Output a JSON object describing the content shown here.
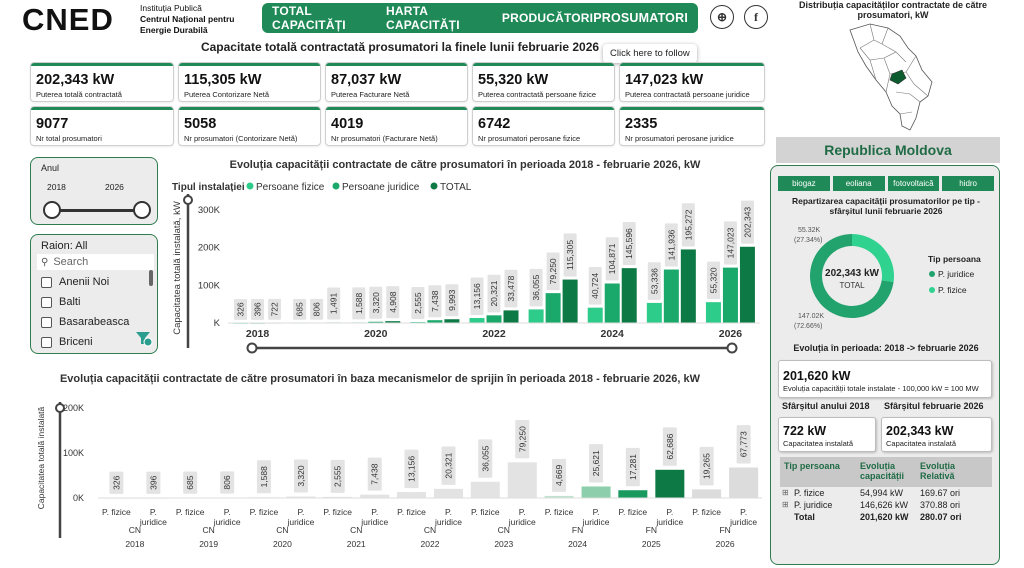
{
  "header": {
    "logo": "CNED",
    "logo_sub_1": "Instituția Publică",
    "logo_sub_2": "Centrul Național pentru",
    "logo_sub_3": "Energie Durabilă",
    "nav": [
      "TOTAL CAPACITĂȚI",
      "HARTA CAPACITĂȚI",
      "PRODUCĂTORI",
      "PROSUMATORI"
    ],
    "active_nav": "PROSUMATORI",
    "tooltip": "Click here to follow"
  },
  "page_title": "Capacitate totală contractată prosumatori la finele lunii februarie 2026",
  "kpis_row1": [
    {
      "value": "202,343 kW",
      "label": "Puterea totală contractată"
    },
    {
      "value": "115,305 kW",
      "label": "Puterea Contorizare Netă"
    },
    {
      "value": "87,037 kW",
      "label": "Puterea Facturare Netă"
    },
    {
      "value": "55,320 kW",
      "label": "Puterea contractată persoane fizice"
    },
    {
      "value": "147,023 kW",
      "label": "Puterea contractată persoane juridice"
    }
  ],
  "kpis_row2": [
    {
      "value": "9077",
      "label": "Nr total prosumatori"
    },
    {
      "value": "5058",
      "label": "Nr prosumatori (Contorizare Netă)"
    },
    {
      "value": "4019",
      "label": "Nr prosumatori (Facturare Netă)"
    },
    {
      "value": "6742",
      "label": "Nr prosumatori perosane fizice"
    },
    {
      "value": "2335",
      "label": "Nr prosumatori perosane juridice"
    }
  ],
  "year_slicer": {
    "title": "Anul",
    "from": "2018",
    "to": "2026"
  },
  "raion_slicer": {
    "title": "Raion: All",
    "search_placeholder": "Search",
    "items": [
      "Anenii Noi",
      "Balti",
      "Basarabeasca",
      "Briceni"
    ]
  },
  "map": {
    "title": "Distribuția capacităților contractate de către prosumatori, kW"
  },
  "right": {
    "country": "Republica Moldova",
    "tabs": [
      "biogaz",
      "eoliana",
      "fotovoltaică",
      "hidro"
    ],
    "donut_title": "Repartizarea capacității prosumatorilor pe tip - sfârșitul lunii februarie 2026",
    "donut_center_value": "202,343 kW",
    "donut_center_label": "TOTAL",
    "donut_label_pf": "55.32K",
    "donut_label_pf_pct": "(27.34%)",
    "donut_label_pj": "147.02K",
    "donut_label_pj_pct": "(72.66%)",
    "legend_title": "Tip persoana",
    "legend_items": [
      "P. juridice",
      "P. fizice"
    ],
    "evolution_title": "Evoluția în perioada: 2018 -> februarie 2026",
    "evolution_value": "201,620 kW",
    "evolution_label": "Evoluția capacității totale instalate - 100,000 kW = 100 MW",
    "end2018_title": "Sfârșitul anului 2018",
    "endfeb_title": "Sfârșitul februarie 2026",
    "end2018_value": "722 kW",
    "end2018_label": "Capacitatea instalată",
    "endfeb_value": "202,343 kW",
    "endfeb_label": "Capacitatea instalată",
    "table_headers": [
      "Tip persoana",
      "Evoluția capacității",
      "Evoluția Relativă"
    ],
    "table_rows": [
      {
        "type": "P. fizice",
        "abs": "54,994 kW",
        "rel": "169.67 ori"
      },
      {
        "type": "P. juridice",
        "abs": "146,626 kW",
        "rel": "370.88 ori"
      },
      {
        "type": "Total",
        "abs": "201,620 kW",
        "rel": "280.07 ori"
      }
    ]
  },
  "colors": {
    "pf": "#2ecc8a",
    "pj": "#1aa96a",
    "total": "#0d7a45",
    "accent": "#1f8a57"
  },
  "chart_data": [
    {
      "type": "bar",
      "title": "Evoluția capacității contractate de către prosumatori în perioada 2018 - februarie 2026, kW",
      "legend_title": "Tipul instalației",
      "ylabel": "Capacitatea totală instalată, kW",
      "yticks": [
        "300K",
        "200K",
        "100K",
        "K"
      ],
      "ylim": [
        0,
        300000
      ],
      "categories": [
        "2018",
        "2019",
        "2020",
        "2021",
        "2022",
        "2023",
        "2024",
        "2025",
        "2026"
      ],
      "xtick_labels": [
        "2018",
        "2020",
        "2022",
        "2024",
        "2026"
      ],
      "series": [
        {
          "name": "Persoane fizice",
          "values": [
            326,
            685,
            1588,
            2555,
            13156,
            36055,
            40724,
            53336,
            55320
          ],
          "labels": [
            "326",
            "685",
            "1,588",
            "2,555",
            "13,156",
            "36,055",
            "40,724",
            "53,336",
            "55,320"
          ]
        },
        {
          "name": "Persoane juridice",
          "values": [
            396,
            806,
            3320,
            7438,
            20321,
            79250,
            104871,
            141936,
            147023
          ],
          "labels": [
            "396",
            "806",
            "3,320",
            "7,438",
            "20,321",
            "79,250",
            "104,871",
            "141,936",
            "147,023"
          ]
        },
        {
          "name": "TOTAL",
          "values": [
            722,
            1491,
            4908,
            9993,
            33478,
            115305,
            145596,
            195272,
            202343
          ],
          "labels": [
            "722",
            "1,491",
            "4,908",
            "9,993",
            "33,478",
            "115,305",
            "145,596",
            "195,272",
            "202,343"
          ]
        }
      ]
    },
    {
      "type": "bar",
      "title": "Evoluția capacității contractate de către prosumatori în baza mecanismelor de sprijin în perioada 2018 - februarie 2026, kW",
      "ylabel": "Capacitatea totală instalată",
      "yticks": [
        "200K",
        "100K",
        "0K"
      ],
      "ylim": [
        0,
        200000
      ],
      "groups": [
        {
          "year": "2018",
          "mech": "CN",
          "pf": 326,
          "pj": 396,
          "pf_label": "326",
          "pj_label": "396"
        },
        {
          "year": "2019",
          "mech": "CN",
          "pf": 685,
          "pj": 806,
          "pf_label": "685",
          "pj_label": "806"
        },
        {
          "year": "2020",
          "mech": "CN",
          "pf": 1588,
          "pj": 3320,
          "pf_label": "1,588",
          "pj_label": "3,320"
        },
        {
          "year": "2021",
          "mech": "CN",
          "pf": 2555,
          "pj": 7438,
          "pf_label": "2,555",
          "pj_label": "7,438"
        },
        {
          "year": "2022",
          "mech": "CN",
          "pf": 13156,
          "pj": 20321,
          "pf_label": "13,156",
          "pj_label": "20,321"
        },
        {
          "year": "2023",
          "mech": "CN",
          "pf": 36055,
          "pj": 79250,
          "pf_label": "36,055",
          "pj_label": "79,250"
        },
        {
          "year": "2024",
          "mech": "FN",
          "pf": 4669,
          "pj": 25621,
          "pf_label": "4,669",
          "pj_label": "25,621"
        },
        {
          "year": "2025",
          "mech": "FN",
          "pf": 17281,
          "pj": 62686,
          "pf_label": "17,281",
          "pj_label": "62,686"
        },
        {
          "year": "2026",
          "mech": "FN",
          "pf": 19265,
          "pj": 67773,
          "pf_label": "19,265",
          "pj_label": "67,773"
        }
      ],
      "sub_labels": [
        "P. fizice",
        "P. juridice"
      ]
    }
  ]
}
